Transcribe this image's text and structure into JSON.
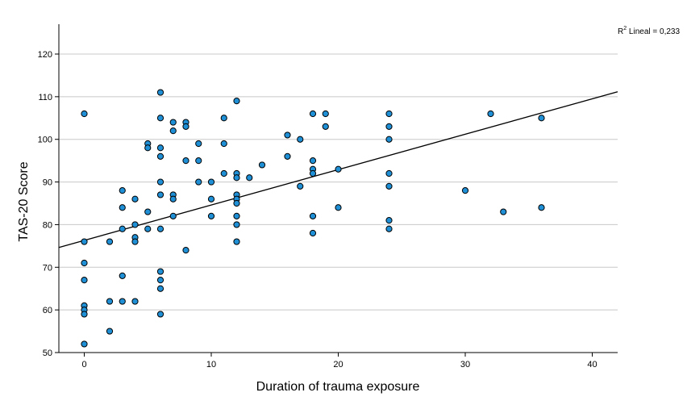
{
  "chart_data": {
    "type": "scatter",
    "xlabel": "Duration of trauma exposure",
    "ylabel": "TAS-20 Score",
    "xlim": [
      -2,
      42
    ],
    "ylim": [
      50,
      127
    ],
    "xticks": [
      0,
      10,
      20,
      30,
      40
    ],
    "yticks": [
      50,
      60,
      70,
      80,
      90,
      100,
      110,
      120
    ],
    "grid": "horizontal",
    "fit_line": {
      "type": "linear",
      "intercept": 76.3,
      "slope": 0.83
    },
    "r2_label": {
      "prefix": "R",
      "sup": "2",
      "text": " Lineal = 0,233"
    },
    "colors": {
      "point_fill": "#1f8fd6",
      "point_stroke": "#000000",
      "grid": "#c8c8c8",
      "line": "#000000"
    },
    "points": [
      [
        0,
        106
      ],
      [
        0,
        76
      ],
      [
        0,
        71
      ],
      [
        0,
        67
      ],
      [
        0,
        61
      ],
      [
        0,
        60
      ],
      [
        0,
        59
      ],
      [
        0,
        52
      ],
      [
        2,
        76
      ],
      [
        2,
        62
      ],
      [
        2,
        55
      ],
      [
        3,
        88
      ],
      [
        3,
        84
      ],
      [
        3,
        79
      ],
      [
        3,
        68
      ],
      [
        3,
        62
      ],
      [
        4,
        86
      ],
      [
        4,
        80
      ],
      [
        4,
        77
      ],
      [
        4,
        76
      ],
      [
        4,
        62
      ],
      [
        5,
        99
      ],
      [
        5,
        98
      ],
      [
        5,
        83
      ],
      [
        5,
        79
      ],
      [
        6,
        111
      ],
      [
        6,
        105
      ],
      [
        6,
        98
      ],
      [
        6,
        96
      ],
      [
        6,
        90
      ],
      [
        6,
        87
      ],
      [
        6,
        79
      ],
      [
        6,
        69
      ],
      [
        6,
        67
      ],
      [
        6,
        65
      ],
      [
        6,
        59
      ],
      [
        7,
        104
      ],
      [
        7,
        102
      ],
      [
        7,
        87
      ],
      [
        7,
        86
      ],
      [
        7,
        82
      ],
      [
        8,
        104
      ],
      [
        8,
        103
      ],
      [
        8,
        95
      ],
      [
        8,
        74
      ],
      [
        9,
        99
      ],
      [
        9,
        95
      ],
      [
        9,
        90
      ],
      [
        10,
        90
      ],
      [
        10,
        86
      ],
      [
        10,
        82
      ],
      [
        11,
        105
      ],
      [
        11,
        99
      ],
      [
        11,
        92
      ],
      [
        12,
        109
      ],
      [
        12,
        92
      ],
      [
        12,
        91
      ],
      [
        12,
        87
      ],
      [
        12,
        86
      ],
      [
        12,
        85
      ],
      [
        12,
        82
      ],
      [
        12,
        80
      ],
      [
        12,
        76
      ],
      [
        13,
        91
      ],
      [
        14,
        94
      ],
      [
        16,
        101
      ],
      [
        16,
        96
      ],
      [
        17,
        100
      ],
      [
        17,
        89
      ],
      [
        18,
        106
      ],
      [
        18,
        95
      ],
      [
        18,
        93
      ],
      [
        18,
        92
      ],
      [
        18,
        82
      ],
      [
        18,
        78
      ],
      [
        19,
        106
      ],
      [
        19,
        103
      ],
      [
        20,
        93
      ],
      [
        20,
        84
      ],
      [
        24,
        106
      ],
      [
        24,
        103
      ],
      [
        24,
        100
      ],
      [
        24,
        92
      ],
      [
        24,
        89
      ],
      [
        24,
        81
      ],
      [
        24,
        79
      ],
      [
        30,
        88
      ],
      [
        32,
        106
      ],
      [
        33,
        83
      ],
      [
        36,
        105
      ],
      [
        36,
        84
      ]
    ]
  }
}
